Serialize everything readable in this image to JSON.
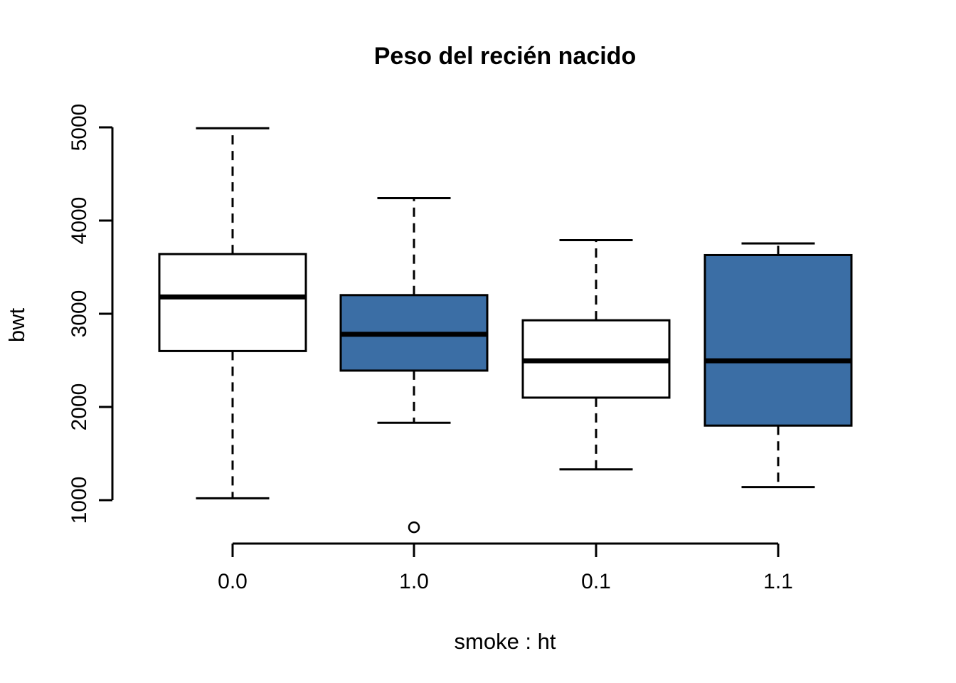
{
  "chart_data": {
    "type": "boxplot",
    "title": "Peso del recién nacido",
    "xlabel": "smoke : ht",
    "ylabel": "bwt",
    "categories": [
      "0.0",
      "1.0",
      "0.1",
      "1.1"
    ],
    "y_ticks": [
      1000,
      2000,
      3000,
      4000,
      5000
    ],
    "ylim": [
      1000,
      5000
    ],
    "grid": false,
    "legend": "none",
    "colors": {
      "box_fill_blue": "#3B6EA5",
      "box_fill_white": "#FFFFFF",
      "line": "#000000",
      "background": "#FFFFFF"
    },
    "series": [
      {
        "category": "0.0",
        "fill": "#FFFFFF",
        "whisker_low": 1020,
        "q1": 2600,
        "median": 3180,
        "q3": 3640,
        "whisker_high": 4990,
        "outliers": []
      },
      {
        "category": "1.0",
        "fill": "#3B6EA5",
        "whisker_low": 1830,
        "q1": 2390,
        "median": 2780,
        "q3": 3200,
        "whisker_high": 4240,
        "outliers": [
          709
        ]
      },
      {
        "category": "0.1",
        "fill": "#FFFFFF",
        "whisker_low": 1330,
        "q1": 2100,
        "median": 2495,
        "q3": 2930,
        "whisker_high": 3790,
        "outliers": []
      },
      {
        "category": "1.1",
        "fill": "#3B6EA5",
        "whisker_low": 1140,
        "q1": 1800,
        "median": 2495,
        "q3": 3630,
        "whisker_high": 3755,
        "outliers": []
      }
    ]
  }
}
